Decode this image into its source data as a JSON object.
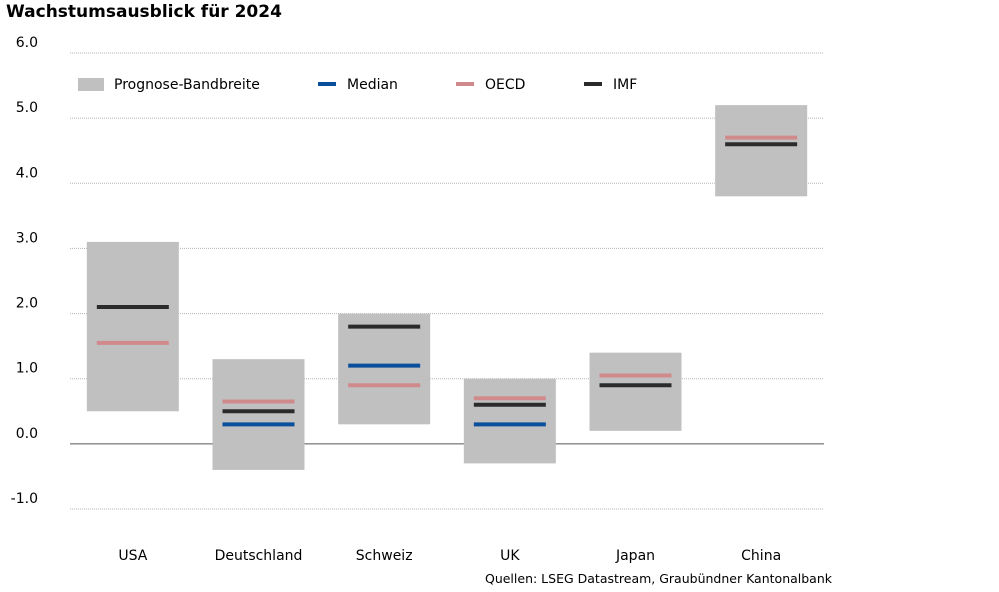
{
  "chart_data": {
    "type": "bar",
    "title": "Wachstumsausblick für 2024",
    "source": "Quellen: LSEG Datastream, Graubündner Kantonalbank",
    "ylim": [
      -1.0,
      6.0
    ],
    "yticks": [
      "6.0",
      "5.0",
      "4.0",
      "3.0",
      "2.0",
      "1.0",
      "0.0",
      "-1.0"
    ],
    "grid": true,
    "legend_position": "top",
    "categories": [
      "USA",
      "Deutschland",
      "Schweiz",
      "UK",
      "Japan",
      "China"
    ],
    "series": [
      {
        "name": "Prognose-Bandbreite",
        "kind": "range",
        "color": "#c0c0c0",
        "values": [
          [
            0.5,
            3.1
          ],
          [
            -0.4,
            1.3
          ],
          [
            0.3,
            2.0
          ],
          [
            -0.3,
            1.0
          ],
          [
            0.2,
            1.4
          ],
          [
            3.8,
            5.2
          ]
        ]
      },
      {
        "name": "Median",
        "kind": "marker",
        "color": "#0a4f9c",
        "values": [
          null,
          0.3,
          1.2,
          0.3,
          null,
          null
        ]
      },
      {
        "name": "OECD",
        "kind": "marker",
        "color": "#d08a8c",
        "values": [
          1.55,
          0.65,
          0.9,
          0.7,
          1.05,
          4.7
        ]
      },
      {
        "name": "IMF",
        "kind": "marker",
        "color": "#2b2b2b",
        "values": [
          2.1,
          0.5,
          1.8,
          0.6,
          0.9,
          4.6
        ]
      }
    ]
  }
}
